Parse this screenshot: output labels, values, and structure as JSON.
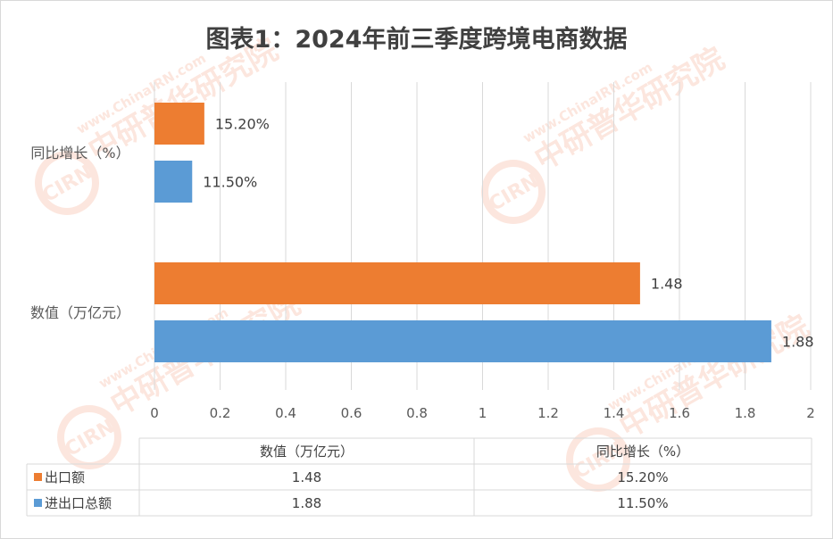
{
  "chart_data": {
    "type": "bar",
    "orientation": "horizontal",
    "title": "图表1：2024年前三季度跨境电商数据",
    "categories": [
      "同比增长（%）",
      "数值（万亿元）"
    ],
    "series": [
      {
        "name": "出口额",
        "values": [
          0.152,
          1.48
        ],
        "labels": [
          "15.20%",
          "1.48"
        ],
        "color": "#ED7D31"
      },
      {
        "name": "进出口总额",
        "values": [
          0.115,
          1.88
        ],
        "labels": [
          "11.50%",
          "1.88"
        ],
        "color": "#5B9BD5"
      }
    ],
    "xlim": [
      0,
      2
    ],
    "xticks": [
      "0",
      "0.2",
      "0.4",
      "0.6",
      "0.8",
      "1",
      "1.2",
      "1.4",
      "1.6",
      "1.8",
      "2"
    ],
    "grid": true,
    "legend": "data-table-below",
    "data_table": {
      "headers": [
        "数值（万亿元）",
        "同比增长（%）"
      ],
      "rows": [
        {
          "name": "出口额",
          "cells": [
            "1.48",
            "15.20%"
          ]
        },
        {
          "name": "进出口总额",
          "cells": [
            "1.88",
            "11.50%"
          ]
        }
      ]
    }
  },
  "watermark": {
    "logo_text": "CIRN",
    "brand_cn": "中研普华研究院",
    "url": "www.ChinaIRN.com"
  }
}
